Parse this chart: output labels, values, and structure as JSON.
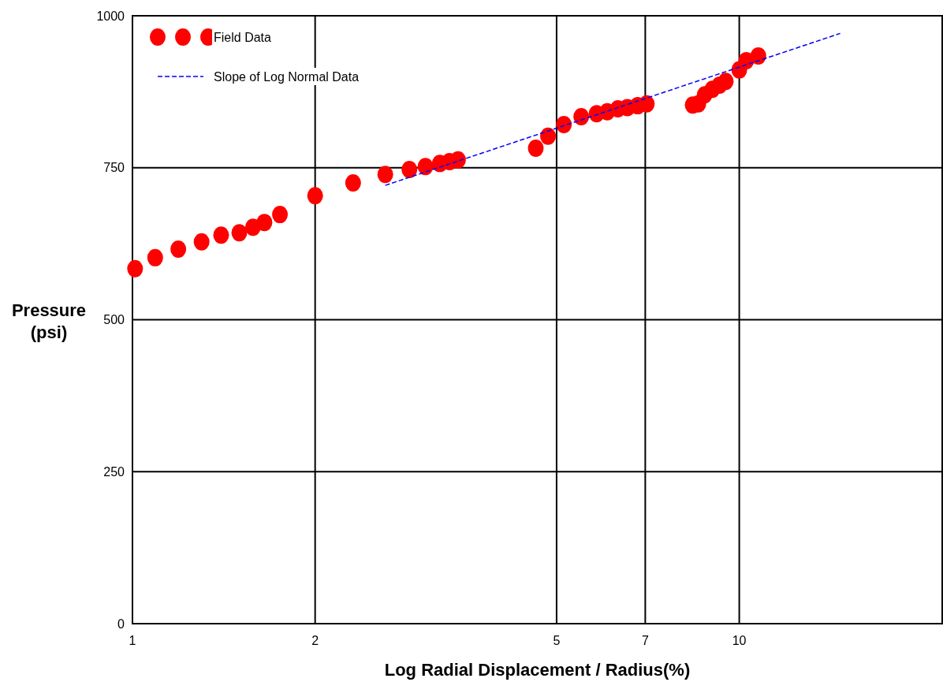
{
  "chart_data": {
    "type": "scatter",
    "xlabel": "Log Radial Displacement / Radius(%)",
    "ylabel": "Pressure\n(psi)",
    "log": "x",
    "xlim": [
      1,
      21.6
    ],
    "xticks": [
      1,
      2,
      5,
      7,
      10
    ],
    "ylim": [
      0,
      1000
    ],
    "yticks": [
      0,
      250,
      500,
      750,
      1000
    ],
    "grid": true,
    "legend": "top left",
    "series": [
      {
        "name": "Field Data",
        "marker": "circle",
        "color": "#ff0000",
        "x": [
          1.01,
          1.09,
          1.19,
          1.3,
          1.4,
          1.5,
          1.58,
          1.65,
          1.75,
          2.0,
          2.31,
          2.61,
          2.86,
          3.04,
          3.21,
          3.33,
          3.44,
          4.62,
          4.84,
          5.14,
          5.49,
          5.82,
          6.06,
          6.31,
          6.54,
          6.8,
          7.04,
          8.38,
          8.56,
          8.77,
          9.03,
          9.28,
          9.5,
          10.0,
          10.27,
          10.75
        ],
        "values": [
          584,
          602,
          616,
          628,
          639,
          643,
          652,
          660,
          673,
          704,
          725,
          739,
          747,
          752,
          757,
          760,
          763,
          782,
          802,
          821,
          834,
          839,
          842,
          847,
          849,
          852,
          855,
          853,
          855,
          870,
          879,
          886,
          892,
          911,
          926,
          934
        ]
      },
      {
        "name": "Slope of Log Normal Data",
        "type": "line",
        "marker": "none",
        "line_style": "dashed",
        "color": "#0000ff",
        "x": [
          2.61,
          14.67
        ],
        "values": [
          721,
          971
        ]
      }
    ]
  }
}
